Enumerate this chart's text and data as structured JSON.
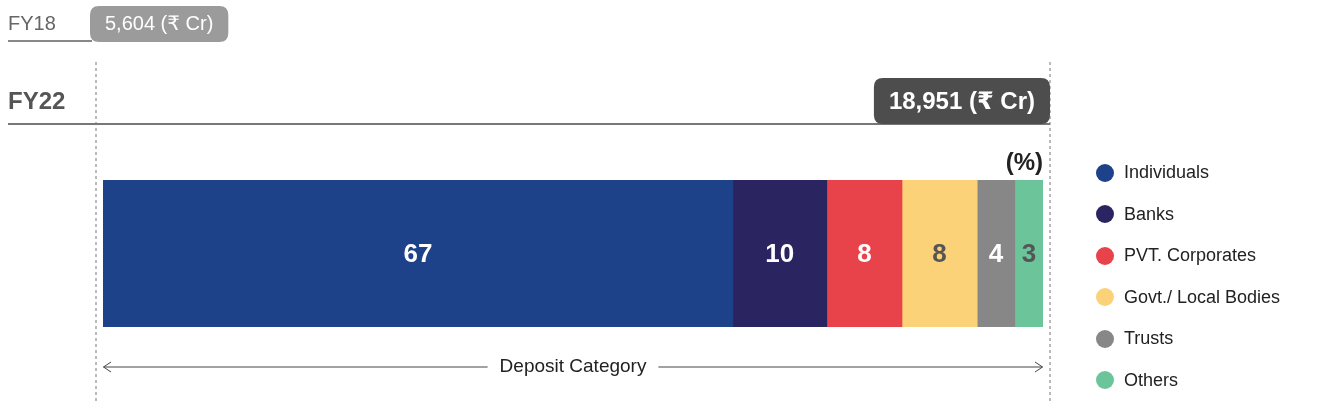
{
  "chart_data": {
    "type": "bar",
    "orientation": "horizontal",
    "stacked": true,
    "categories": [
      null
    ],
    "xlabel": "Deposit Category",
    "xlim": [
      0,
      100
    ],
    "tick_labels": false,
    "grid": false,
    "legend": "right",
    "data_labels": true,
    "annotations": [
      "(%)",
      "FY18",
      "5,604 (₹ Cr)",
      "FY22",
      "18,951 (₹ Cr)"
    ],
    "series": [
      {
        "name": "Individuals",
        "color": "#1d428a",
        "values": [
          67
        ]
      },
      {
        "name": "Banks",
        "color": "#2a2560",
        "values": [
          10
        ]
      },
      {
        "name": "PVT. Corporates",
        "color": "#e8434a",
        "values": [
          8
        ]
      },
      {
        "name": "Govt./ Local Bodies",
        "color": "#fbd277",
        "values": [
          8
        ]
      },
      {
        "name": "Trusts",
        "color": "#878787",
        "values": [
          4
        ]
      },
      {
        "name": "Others",
        "color": "#6cc49b",
        "values": [
          3
        ]
      }
    ]
  }
}
